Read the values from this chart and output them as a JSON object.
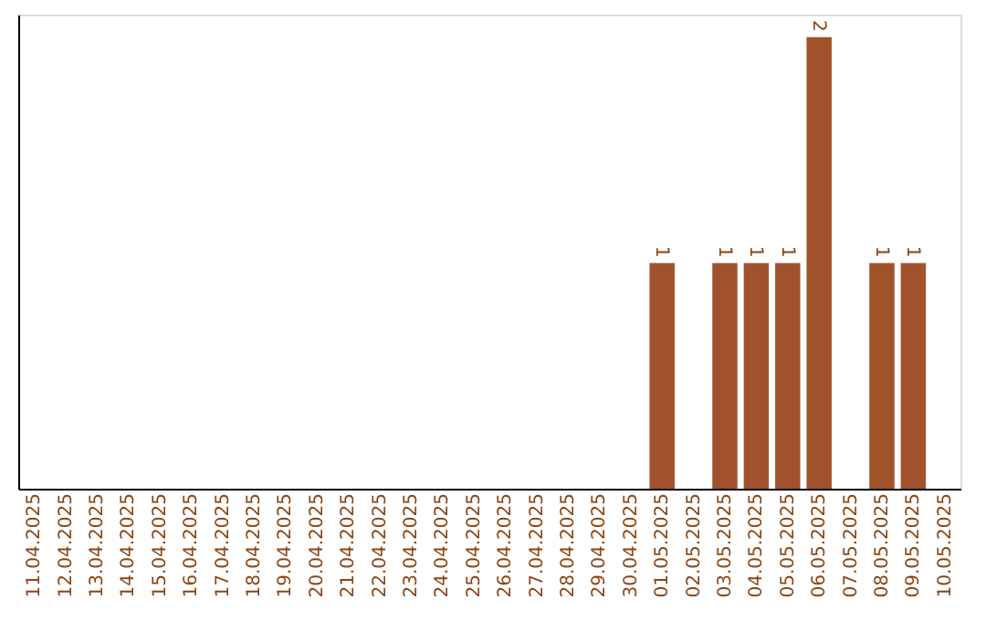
{
  "chart_data": {
    "type": "bar",
    "categories": [
      "11.04.2025",
      "12.04.2025",
      "13.04.2025",
      "14.04.2025",
      "15.04.2025",
      "16.04.2025",
      "17.04.2025",
      "18.04.2025",
      "19.04.2025",
      "20.04.2025",
      "21.04.2025",
      "22.04.2025",
      "23.04.2025",
      "24.04.2025",
      "25.04.2025",
      "26.04.2025",
      "27.04.2025",
      "28.04.2025",
      "29.04.2025",
      "30.04.2025",
      "01.05.2025",
      "02.05.2025",
      "03.05.2025",
      "04.05.2025",
      "05.05.2025",
      "06.05.2025",
      "07.05.2025",
      "08.05.2025",
      "09.05.2025",
      "10.05.2025"
    ],
    "values": [
      null,
      null,
      null,
      null,
      null,
      null,
      null,
      null,
      null,
      null,
      null,
      null,
      null,
      null,
      null,
      null,
      null,
      null,
      null,
      null,
      1,
      null,
      1,
      1,
      1,
      2,
      null,
      1,
      1,
      null
    ],
    "color": "#a0522d",
    "ylim": [
      0,
      2.1
    ],
    "data_labels": true,
    "tick_labels": "x",
    "grid": false
  }
}
